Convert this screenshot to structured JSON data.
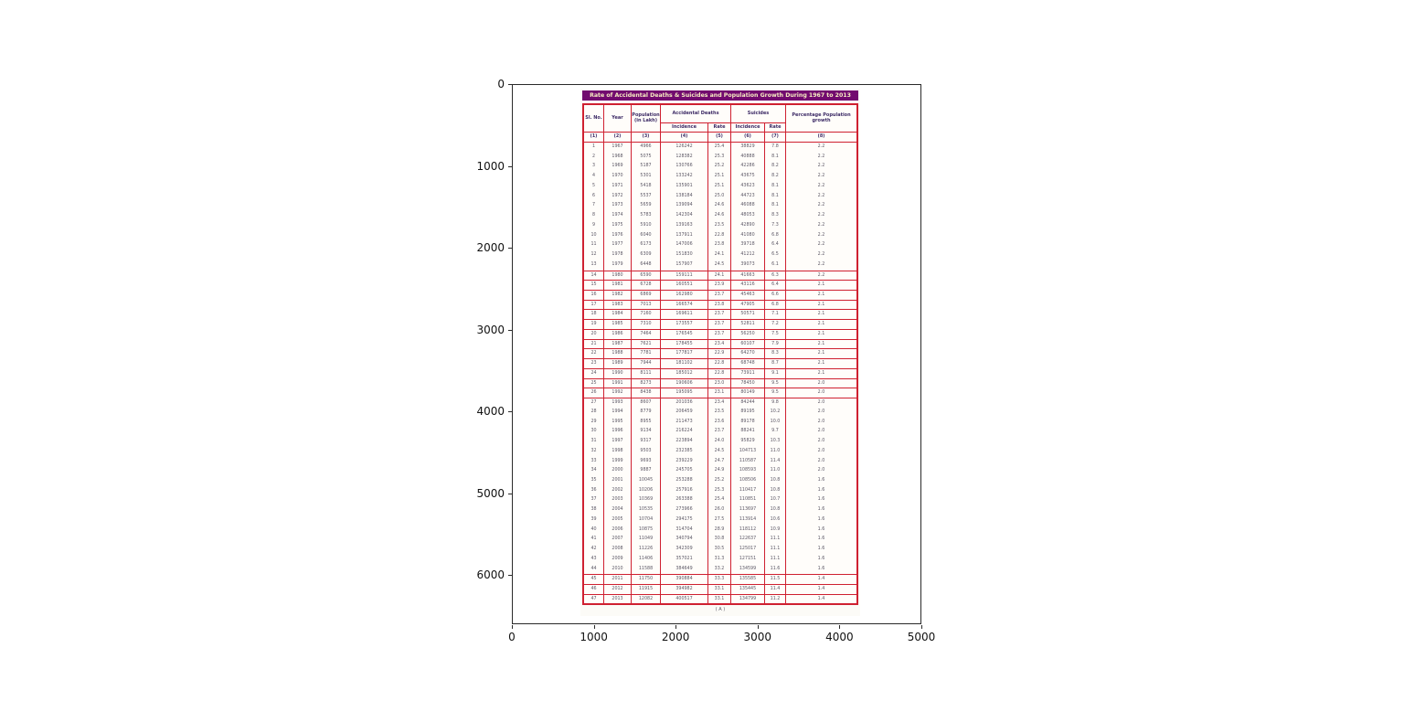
{
  "figure": {
    "y_tick_labels": [
      "0",
      "1000",
      "2000",
      "3000",
      "4000",
      "5000",
      "6000"
    ],
    "x_tick_labels": [
      "0",
      "1000",
      "2000",
      "3000",
      "4000",
      "5000"
    ]
  },
  "colors": {
    "title_bar": "#720b6f",
    "title_text": "#f8eec2",
    "table_grid": "#cf2030",
    "header_text": "#3d2b66",
    "body_text": "#5c5866"
  },
  "chart_data": {
    "type": "table",
    "title": "Rate of Accidental Deaths & Suicides and Population Growth During 1967 to 2013",
    "caption": "( A )",
    "group_columns": [
      {
        "label": "Sl. No."
      },
      {
        "label": "Year"
      },
      {
        "label": "Population (in Lakh)"
      },
      {
        "label": "Accidental Deaths",
        "children": [
          "Incidence",
          "Rate"
        ]
      },
      {
        "label": "Suicides",
        "children": [
          "Incidence",
          "Rate"
        ]
      },
      {
        "label": "Percentage Population growth"
      }
    ],
    "column_numbers": [
      "(1)",
      "(2)",
      "(3)",
      "(4)",
      "(5)",
      "(6)",
      "(7)",
      "(8)"
    ],
    "rows": [
      [
        1,
        1967,
        4966,
        126242,
        "25.4",
        38829,
        "7.8",
        "2.2"
      ],
      [
        2,
        1968,
        5075,
        128382,
        "25.3",
        40888,
        "8.1",
        "2.2"
      ],
      [
        3,
        1969,
        5187,
        130766,
        "25.2",
        42286,
        "8.2",
        "2.2"
      ],
      [
        4,
        1970,
        5301,
        133242,
        "25.1",
        43675,
        "8.2",
        "2.2"
      ],
      [
        5,
        1971,
        5418,
        135901,
        "25.1",
        43623,
        "8.1",
        "2.2"
      ],
      [
        6,
        1972,
        5537,
        138184,
        "25.0",
        44723,
        "8.1",
        "2.2"
      ],
      [
        7,
        1973,
        5659,
        139094,
        "24.6",
        46088,
        "8.1",
        "2.2"
      ],
      [
        8,
        1974,
        5783,
        142304,
        "24.6",
        48053,
        "8.3",
        "2.2"
      ],
      [
        9,
        1975,
        5910,
        139163,
        "23.5",
        42890,
        "7.3",
        "2.2"
      ],
      [
        10,
        1976,
        6040,
        137911,
        "22.8",
        41080,
        "6.8",
        "2.2"
      ],
      [
        11,
        1977,
        6173,
        147006,
        "23.8",
        39718,
        "6.4",
        "2.2"
      ],
      [
        12,
        1978,
        6309,
        151830,
        "24.1",
        41212,
        "6.5",
        "2.2"
      ],
      [
        13,
        1979,
        6448,
        157907,
        "24.5",
        39073,
        "6.1",
        "2.2"
      ],
      [
        14,
        1980,
        6590,
        159111,
        "24.1",
        41663,
        "6.3",
        "2.2"
      ],
      [
        15,
        1981,
        6728,
        160551,
        "23.9",
        43116,
        "6.4",
        "2.1"
      ],
      [
        16,
        1982,
        6869,
        162980,
        "23.7",
        45463,
        "6.6",
        "2.1"
      ],
      [
        17,
        1983,
        7013,
        166574,
        "23.8",
        47905,
        "6.8",
        "2.1"
      ],
      [
        18,
        1984,
        7160,
        169611,
        "23.7",
        50571,
        "7.1",
        "2.1"
      ],
      [
        19,
        1985,
        7310,
        173557,
        "23.7",
        52811,
        "7.2",
        "2.1"
      ],
      [
        20,
        1986,
        7464,
        176545,
        "23.7",
        56250,
        "7.5",
        "2.1"
      ],
      [
        21,
        1987,
        7621,
        178455,
        "23.4",
        60107,
        "7.9",
        "2.1"
      ],
      [
        22,
        1988,
        7781,
        177817,
        "22.9",
        64270,
        "8.3",
        "2.1"
      ],
      [
        23,
        1989,
        7944,
        181102,
        "22.8",
        68748,
        "8.7",
        "2.1"
      ],
      [
        24,
        1990,
        8111,
        185012,
        "22.8",
        73911,
        "9.1",
        "2.1"
      ],
      [
        25,
        1991,
        8273,
        190606,
        "23.0",
        78450,
        "9.5",
        "2.0"
      ],
      [
        26,
        1992,
        8438,
        195095,
        "23.1",
        80149,
        "9.5",
        "2.0"
      ],
      [
        27,
        1993,
        8607,
        201036,
        "23.4",
        84244,
        "9.8",
        "2.0"
      ],
      [
        28,
        1994,
        8779,
        206459,
        "23.5",
        89195,
        "10.2",
        "2.0"
      ],
      [
        29,
        1995,
        8955,
        211473,
        "23.6",
        89178,
        "10.0",
        "2.0"
      ],
      [
        30,
        1996,
        9134,
        216224,
        "23.7",
        88241,
        "9.7",
        "2.0"
      ],
      [
        31,
        1997,
        9317,
        223894,
        "24.0",
        95829,
        "10.3",
        "2.0"
      ],
      [
        32,
        1998,
        9503,
        232385,
        "24.5",
        104713,
        "11.0",
        "2.0"
      ],
      [
        33,
        1999,
        9693,
        239229,
        "24.7",
        110587,
        "11.4",
        "2.0"
      ],
      [
        34,
        2000,
        9887,
        245705,
        "24.9",
        108593,
        "11.0",
        "2.0"
      ],
      [
        35,
        2001,
        10045,
        253288,
        "25.2",
        108506,
        "10.8",
        "1.6"
      ],
      [
        36,
        2002,
        10206,
        257916,
        "25.3",
        110417,
        "10.8",
        "1.6"
      ],
      [
        37,
        2003,
        10369,
        263388,
        "25.4",
        110851,
        "10.7",
        "1.6"
      ],
      [
        38,
        2004,
        10535,
        273966,
        "26.0",
        113697,
        "10.8",
        "1.6"
      ],
      [
        39,
        2005,
        10704,
        294175,
        "27.5",
        113914,
        "10.6",
        "1.6"
      ],
      [
        40,
        2006,
        10875,
        314704,
        "28.9",
        118112,
        "10.9",
        "1.6"
      ],
      [
        41,
        2007,
        11049,
        340794,
        "30.8",
        122637,
        "11.1",
        "1.6"
      ],
      [
        42,
        2008,
        11226,
        342309,
        "30.5",
        125017,
        "11.1",
        "1.6"
      ],
      [
        43,
        2009,
        11406,
        357021,
        "31.3",
        127151,
        "11.1",
        "1.6"
      ],
      [
        44,
        2010,
        11588,
        384649,
        "33.2",
        134599,
        "11.6",
        "1.6"
      ],
      [
        45,
        2011,
        11750,
        390884,
        "33.3",
        135585,
        "11.5",
        "1.4"
      ],
      [
        46,
        2012,
        11915,
        394982,
        "33.1",
        135445,
        "11.4",
        "1.4"
      ],
      [
        47,
        2013,
        12082,
        400517,
        "33.1",
        134799,
        "11.2",
        "1.4"
      ]
    ]
  }
}
